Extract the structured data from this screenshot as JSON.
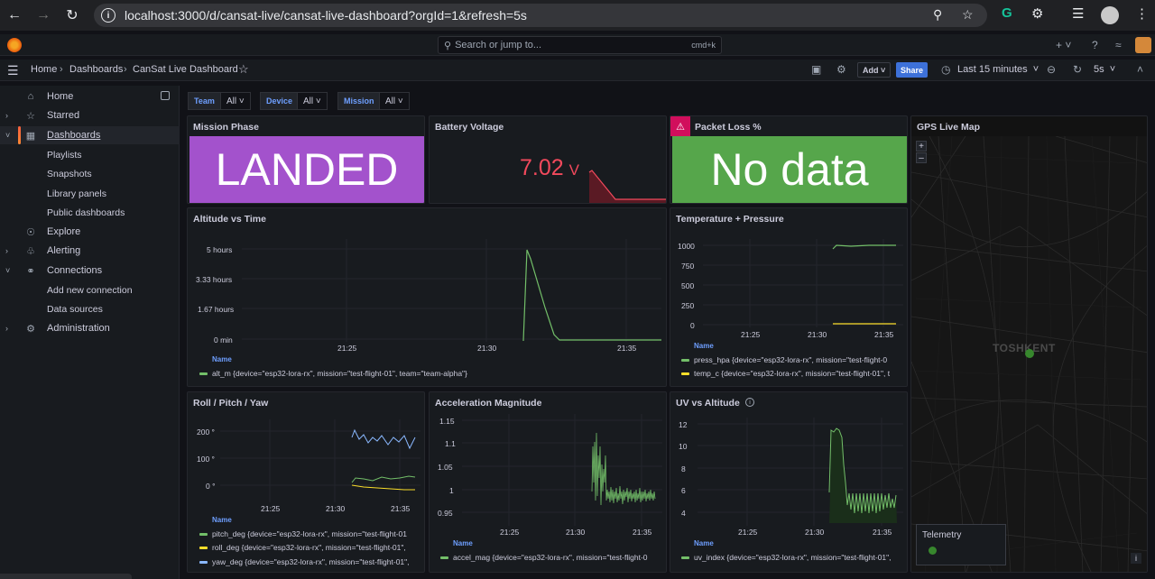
{
  "browser": {
    "url": "localhost:3000/d/cansat-live/cansat-live-dashboard?orgId=1&refresh=5s"
  },
  "topbar": {
    "search_placeholder": "Search or jump to...",
    "search_shortcut": "cmd+k"
  },
  "breadcrumb": {
    "items": [
      "Home",
      "Dashboards",
      "CanSat Live Dashboard"
    ],
    "add_label": "Add",
    "share_label": "Share",
    "time_range": "Last 15 minutes",
    "refresh": "5s"
  },
  "sidebar": {
    "items": [
      {
        "label": "Home",
        "icon": "home-icon"
      },
      {
        "label": "Starred",
        "icon": "star-icon"
      },
      {
        "label": "Dashboards",
        "icon": "grid-icon"
      },
      {
        "label": "Explore",
        "icon": "compass-icon"
      },
      {
        "label": "Alerting",
        "icon": "bell-icon"
      },
      {
        "label": "Connections",
        "icon": "link-icon"
      },
      {
        "label": "Administration",
        "icon": "gear-icon"
      }
    ],
    "dashboards_sub": [
      "Playlists",
      "Snapshots",
      "Library panels",
      "Public dashboards"
    ],
    "connections_sub": [
      "Add new connection",
      "Data sources"
    ]
  },
  "variables": [
    {
      "label": "Team",
      "value": "All"
    },
    {
      "label": "Device",
      "value": "All"
    },
    {
      "label": "Mission",
      "value": "All"
    }
  ],
  "panels": {
    "mission_phase": {
      "title": "Mission Phase",
      "value": "LANDED",
      "color": "#a352cc"
    },
    "battery": {
      "title": "Battery Voltage",
      "value": "7.02",
      "unit": "V",
      "color": "#f2495c"
    },
    "packet_loss": {
      "title": "Packet Loss %",
      "value": "No data",
      "color": "#56a64b"
    },
    "gps": {
      "title": "GPS Live Map",
      "city": "TOSHKENT",
      "telemetry": "Telemetry"
    },
    "altitude": {
      "title": "Altitude vs Time",
      "yticks": [
        "5 hours",
        "3.33 hours",
        "1.67 hours",
        "0 min"
      ],
      "xticks": [
        "21:25",
        "21:30",
        "21:35"
      ],
      "legend_header": "Name",
      "series": [
        "alt_m {device=\"esp32-lora-rx\", mission=\"test-flight-01\", team=\"team-alpha\"}"
      ]
    },
    "temp_pressure": {
      "title": "Temperature + Pressure",
      "yticks": [
        "1000",
        "750",
        "500",
        "250",
        "0"
      ],
      "xticks": [
        "21:25",
        "21:30",
        "21:35"
      ],
      "legend_header": "Name",
      "series": [
        "press_hpa {device=\"esp32-lora-rx\", mission=\"test-flight-0",
        "temp_c {device=\"esp32-lora-rx\", mission=\"test-flight-01\", t"
      ]
    },
    "roll": {
      "title": "Roll / Pitch / Yaw",
      "yticks": [
        "200 °",
        "100 °",
        "0 °"
      ],
      "xticks": [
        "21:25",
        "21:30",
        "21:35"
      ],
      "legend_header": "Name",
      "series": [
        "pitch_deg {device=\"esp32-lora-rx\", mission=\"test-flight-01",
        "roll_deg {device=\"esp32-lora-rx\", mission=\"test-flight-01\",",
        "yaw_deg {device=\"esp32-lora-rx\", mission=\"test-flight-01\","
      ]
    },
    "accel": {
      "title": "Acceleration Magnitude",
      "yticks": [
        "1.15",
        "1.1",
        "1.05",
        "1",
        "0.95"
      ],
      "xticks": [
        "21:25",
        "21:30",
        "21:35"
      ],
      "legend_header": "Name",
      "series": [
        "accel_mag {device=\"esp32-lora-rx\", mission=\"test-flight-0"
      ]
    },
    "uv": {
      "title": "UV vs Altitude",
      "yticks": [
        "12",
        "10",
        "8",
        "6",
        "4"
      ],
      "xticks": [
        "21:25",
        "21:30",
        "21:35"
      ],
      "legend_header": "Name",
      "series": [
        "uv_index {device=\"esp32-lora-rx\", mission=\"test-flight-01\","
      ]
    }
  },
  "colors": {
    "green": "#73bf69",
    "yellow": "#fade2a",
    "blue": "#8ab8ff"
  }
}
